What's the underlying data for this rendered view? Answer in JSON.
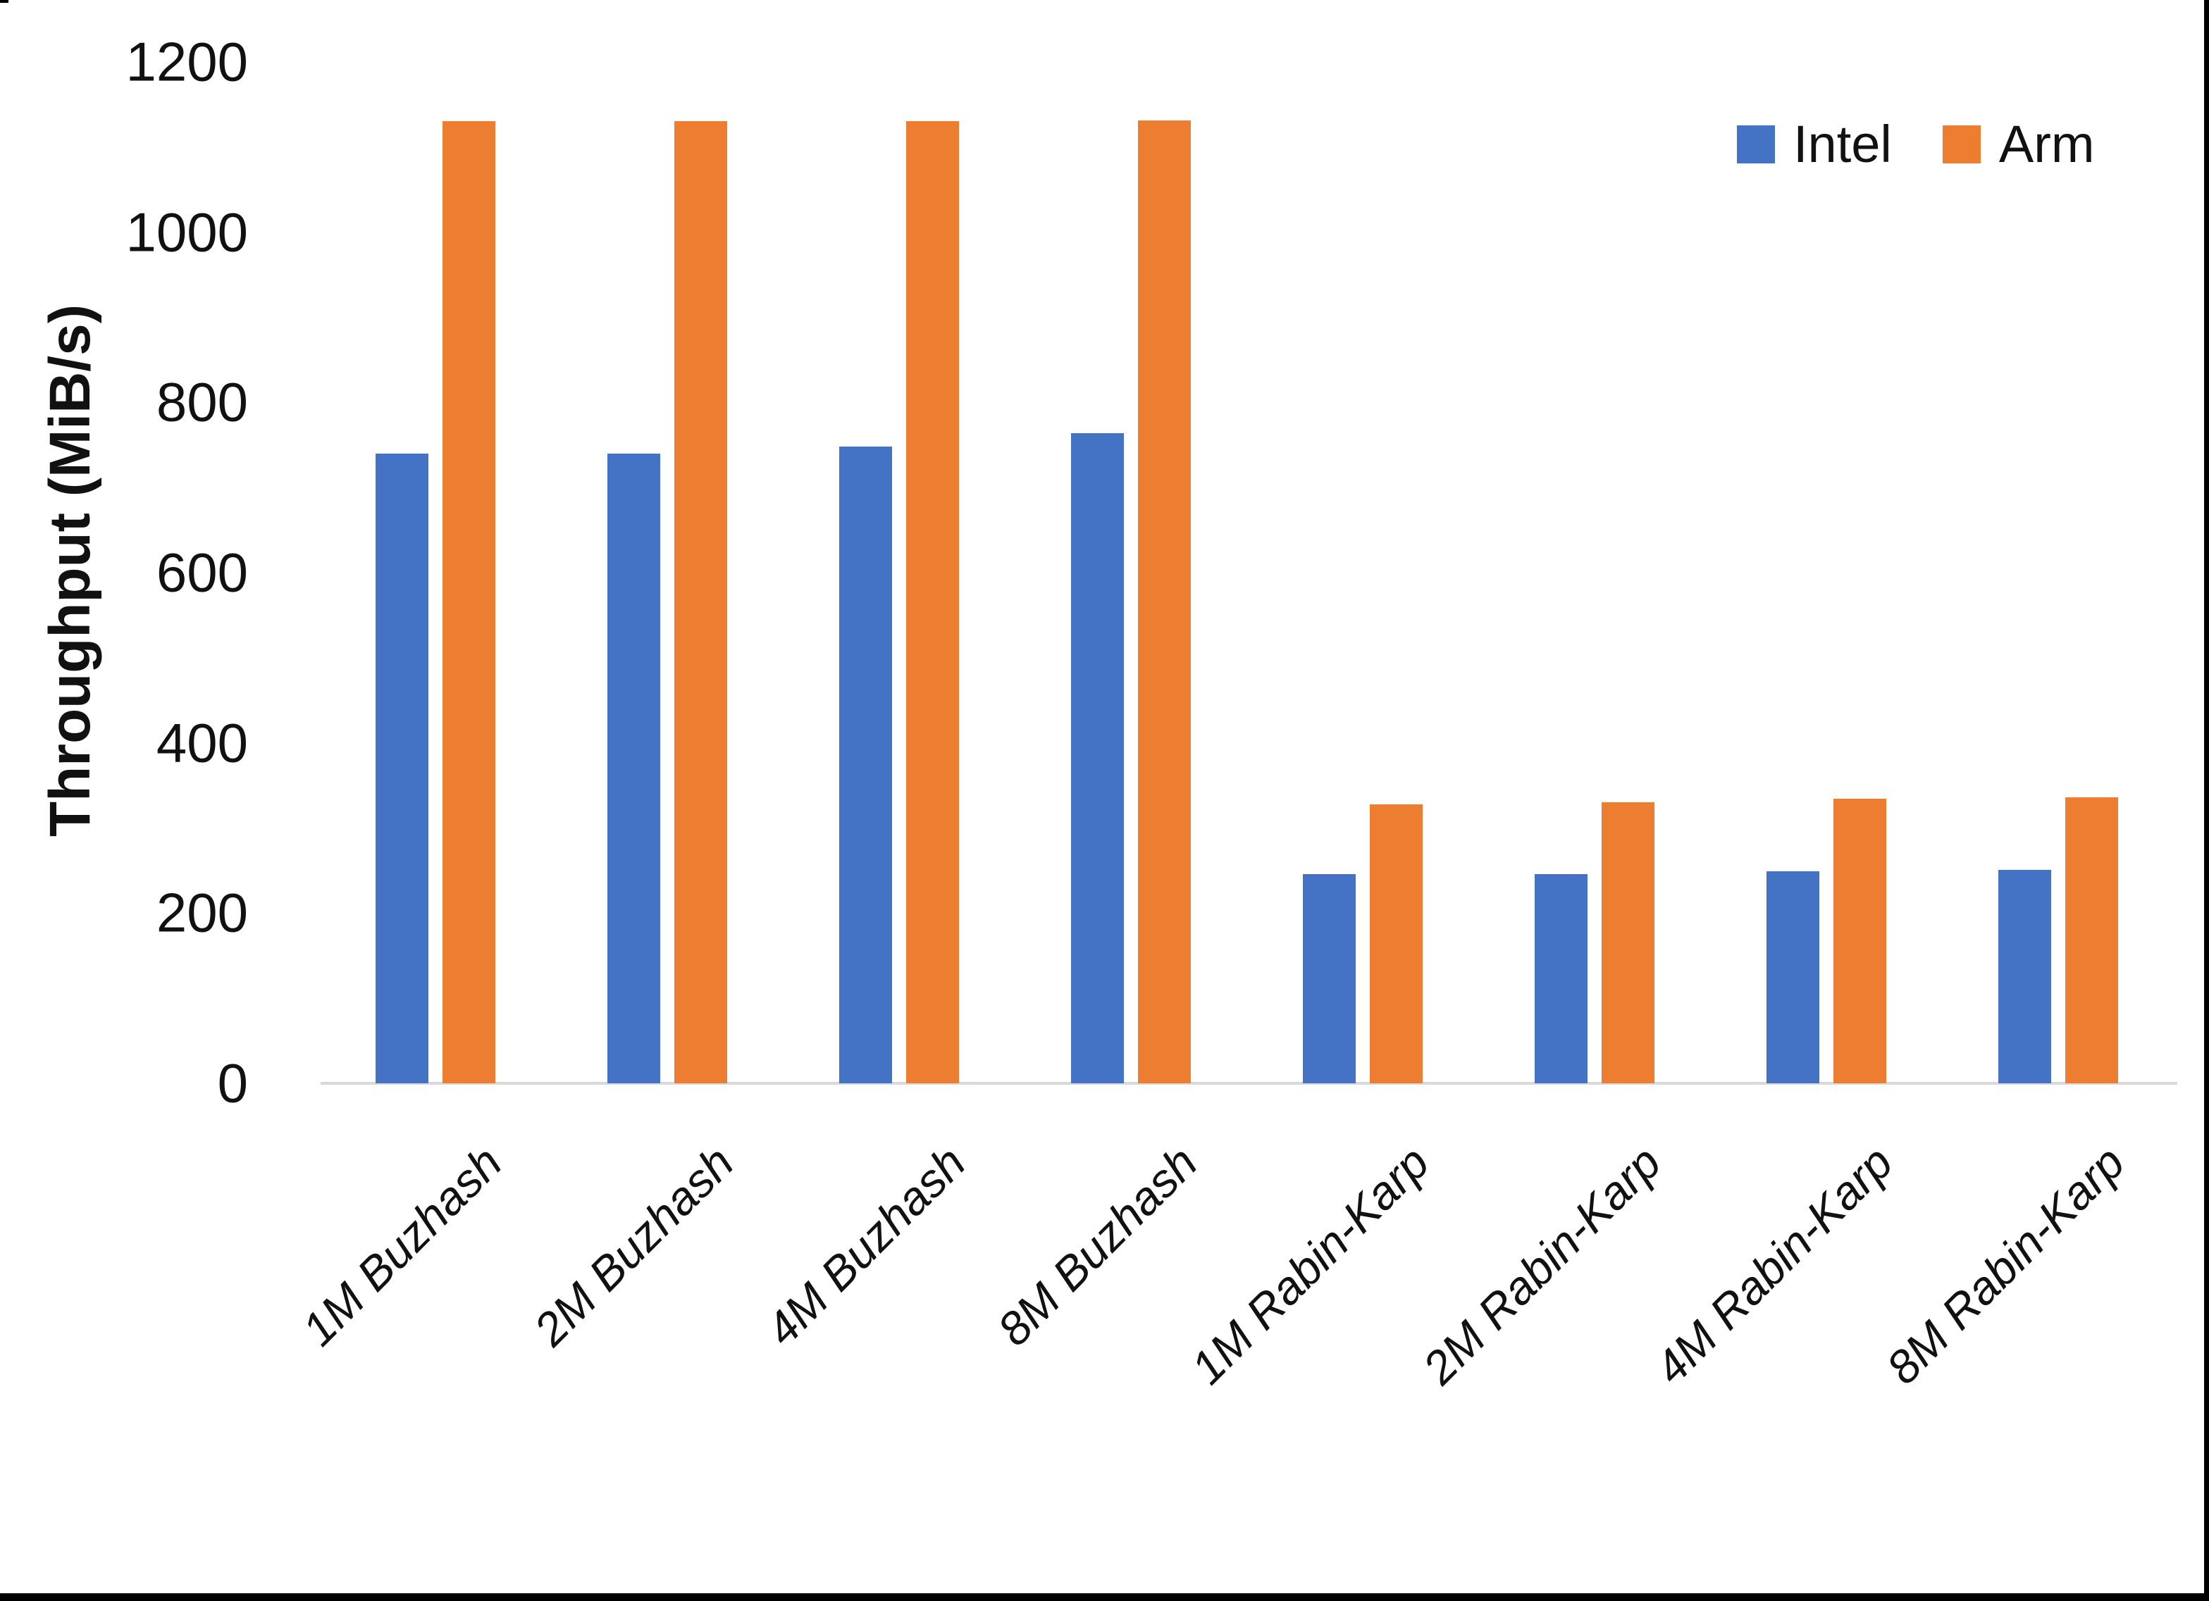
{
  "chart_data": {
    "type": "bar",
    "title": "",
    "xlabel": "",
    "ylabel": "Throughput (MiB/s)",
    "ylim": [
      0,
      1200
    ],
    "yticks": [
      0,
      200,
      400,
      600,
      800,
      1000,
      1200
    ],
    "grid": false,
    "legend_position": "top-right",
    "categories": [
      "1M Buzhash",
      "2M Buzhash",
      "4M Buzhash",
      "8M Buzhash",
      "1M Rabin-Karp",
      "2M Rabin-Karp",
      "4M Rabin-Karp",
      "8M Rabin-Karp"
    ],
    "series": [
      {
        "name": "Intel",
        "color": "#4472C4",
        "values": [
          740,
          740,
          748,
          764,
          246,
          246,
          249,
          251
        ]
      },
      {
        "name": "Arm",
        "color": "#ED7D31",
        "values": [
          1130,
          1130,
          1130,
          1131,
          328,
          330,
          334,
          336
        ]
      }
    ]
  },
  "colors": {
    "axis_line": "#d9d9d9",
    "text": "#111111",
    "frame": "#000000",
    "background": "#ffffff"
  }
}
